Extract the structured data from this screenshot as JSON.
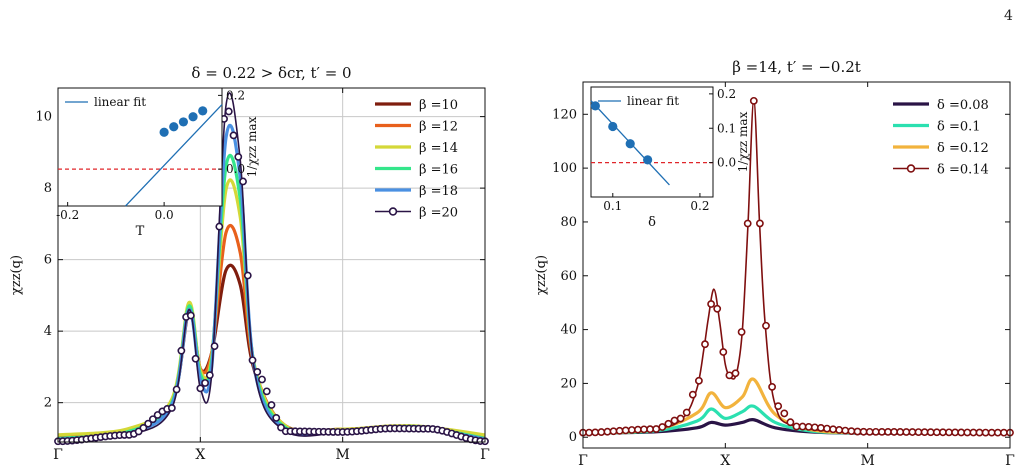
{
  "page_number": "4",
  "chart_data": [
    {
      "type": "line",
      "title": "δ = 0.22 > δcr, t′ = 0",
      "xlabel": "",
      "ylabel": "χzz(q)",
      "xticks": [
        "Γ",
        "X",
        "M",
        "Γ"
      ],
      "xlim": [
        0,
        3
      ],
      "ylim": [
        0.9,
        10.8
      ],
      "yticks": [
        2,
        4,
        6,
        8,
        10
      ],
      "grid": true,
      "legend_position": "top-right",
      "series": [
        {
          "name": "β =10",
          "color": "#7f1d0e",
          "x": [
            0,
            0.5,
            0.8,
            0.92,
            1,
            1.08,
            1.18,
            1.28,
            1.38,
            1.6,
            2,
            2.35,
            2.6,
            3
          ],
          "y": [
            1.05,
            1.25,
            2.0,
            4.55,
            2.95,
            3.4,
            5.7,
            5.3,
            2.9,
            1.35,
            1.25,
            1.32,
            1.3,
            1.05
          ]
        },
        {
          "name": "β =12",
          "color": "#e8601c",
          "x": [
            0,
            0.5,
            0.8,
            0.92,
            1,
            1.08,
            1.18,
            1.28,
            1.38,
            1.6,
            2,
            2.35,
            2.6,
            3
          ],
          "y": [
            1.08,
            1.26,
            2.05,
            4.6,
            2.95,
            3.4,
            6.75,
            6.2,
            3.0,
            1.35,
            1.26,
            1.34,
            1.31,
            1.08
          ]
        },
        {
          "name": "β =14",
          "color": "#d4d838",
          "x": [
            0,
            0.5,
            0.8,
            0.92,
            1,
            1.08,
            1.18,
            1.28,
            1.38,
            1.6,
            2,
            2.35,
            2.6,
            3
          ],
          "y": [
            1.1,
            1.28,
            2.1,
            4.8,
            2.9,
            3.3,
            7.95,
            7.2,
            3.05,
            1.35,
            1.26,
            1.35,
            1.32,
            1.1
          ]
        },
        {
          "name": "β =16",
          "color": "#34e68b",
          "x": [
            0,
            0.5,
            0.8,
            0.92,
            1,
            1.08,
            1.18,
            1.28,
            1.38,
            1.6,
            2,
            2.35,
            2.6,
            3
          ],
          "y": [
            1.0,
            1.2,
            2.0,
            4.7,
            2.8,
            3.2,
            8.6,
            7.7,
            3.0,
            1.3,
            1.22,
            1.32,
            1.3,
            1.0
          ]
        },
        {
          "name": "β =18",
          "color": "#4a90e2",
          "x": [
            0,
            0.5,
            0.8,
            0.92,
            1,
            1.08,
            1.18,
            1.28,
            1.38,
            1.6,
            2,
            2.35,
            2.6,
            3
          ],
          "y": [
            0.98,
            1.15,
            1.95,
            4.6,
            2.65,
            3.0,
            9.4,
            8.3,
            2.95,
            1.25,
            1.2,
            1.3,
            1.28,
            0.98
          ]
        },
        {
          "name": "β =20",
          "color": "#2a1446",
          "markers": true,
          "x": [
            0,
            0.5,
            0.8,
            0.92,
            1,
            1.08,
            1.18,
            1.28,
            1.38,
            1.6,
            2,
            2.35,
            2.6,
            3
          ],
          "y": [
            0.92,
            1.1,
            1.85,
            4.6,
            2.4,
            2.8,
            10.3,
            8.8,
            2.9,
            1.2,
            1.18,
            1.28,
            1.27,
            0.92
          ]
        }
      ],
      "inset": {
        "xlabel": "T",
        "ylabel": "1/χzz max",
        "xticks": [
          -0.2,
          0.0
        ],
        "yticks": [
          0.0,
          0.2
        ],
        "xlim": [
          -0.22,
          0.12
        ],
        "ylim": [
          -0.1,
          0.22
        ],
        "legend": "linear fit",
        "points": {
          "x": [
            0.0,
            0.02,
            0.04,
            0.06,
            0.08
          ],
          "y": [
            0.1,
            0.115,
            0.128,
            0.142,
            0.158
          ]
        },
        "fit": {
          "x": [
            -0.08,
            0.12
          ],
          "y": [
            -0.1,
            0.175
          ]
        },
        "hline": 0.0
      }
    },
    {
      "type": "line",
      "title": "β =14, t′ = −0.2t",
      "xlabel": "",
      "ylabel": "χzz(q)",
      "xticks": [
        "Γ",
        "X",
        "M",
        "Γ"
      ],
      "xlim": [
        0,
        3
      ],
      "ylim": [
        -4,
        132
      ],
      "yticks": [
        0,
        20,
        40,
        60,
        80,
        100,
        120
      ],
      "grid": false,
      "legend_position": "top-right",
      "series": [
        {
          "name": "δ =0.08",
          "color": "#2a1446",
          "x": [
            0,
            0.5,
            0.8,
            0.9,
            1,
            1.12,
            1.2,
            1.35,
            1.6,
            2,
            3
          ],
          "y": [
            1.5,
            2,
            3.5,
            5.5,
            4.5,
            5.5,
            6.5,
            3.5,
            2,
            1.5,
            1.5
          ]
        },
        {
          "name": "δ =0.1",
          "color": "#2be0b0",
          "x": [
            0,
            0.5,
            0.8,
            0.9,
            1,
            1.12,
            1.2,
            1.35,
            1.6,
            2,
            3
          ],
          "y": [
            1.5,
            2.3,
            6,
            10.5,
            7,
            9.5,
            11.5,
            5.5,
            2.3,
            1.6,
            1.5
          ]
        },
        {
          "name": "δ =0.12",
          "color": "#f2b33d",
          "x": [
            0,
            0.5,
            0.8,
            0.9,
            1,
            1.12,
            1.2,
            1.35,
            1.6,
            2,
            3
          ],
          "y": [
            1.6,
            2.8,
            9,
            16.5,
            11,
            15,
            21.5,
            8.5,
            2.8,
            1.7,
            1.6
          ]
        },
        {
          "name": "δ =0.14",
          "color": "#7f0f0f",
          "markers": true,
          "x": [
            0,
            0.5,
            0.7,
            0.8,
            0.85,
            0.88,
            0.92,
            0.96,
            1,
            1.04,
            1.08,
            1.12,
            1.16,
            1.2,
            1.24,
            1.28,
            1.35,
            1.5,
            2,
            3
          ],
          "y": [
            1.7,
            3,
            7,
            18,
            33,
            44,
            55,
            43,
            27,
            22,
            24,
            40,
            80,
            125,
            80,
            42,
            12,
            4,
            2,
            1.7
          ]
        }
      ],
      "inset": {
        "xlabel": "δ",
        "ylabel": "1/χzz max",
        "xticks": [
          0.1,
          0.2
        ],
        "yticks": [
          0.0,
          0.1,
          0.2
        ],
        "xlim": [
          0.075,
          0.215
        ],
        "ylim": [
          -0.1,
          0.22
        ],
        "legend": "linear fit",
        "points": {
          "x": [
            0.08,
            0.1,
            0.12,
            0.14
          ],
          "y": [
            0.165,
            0.105,
            0.055,
            0.008
          ]
        },
        "fit": {
          "x": [
            0.075,
            0.165
          ],
          "y": [
            0.18,
            -0.065
          ]
        },
        "hline": 0.0
      }
    }
  ]
}
